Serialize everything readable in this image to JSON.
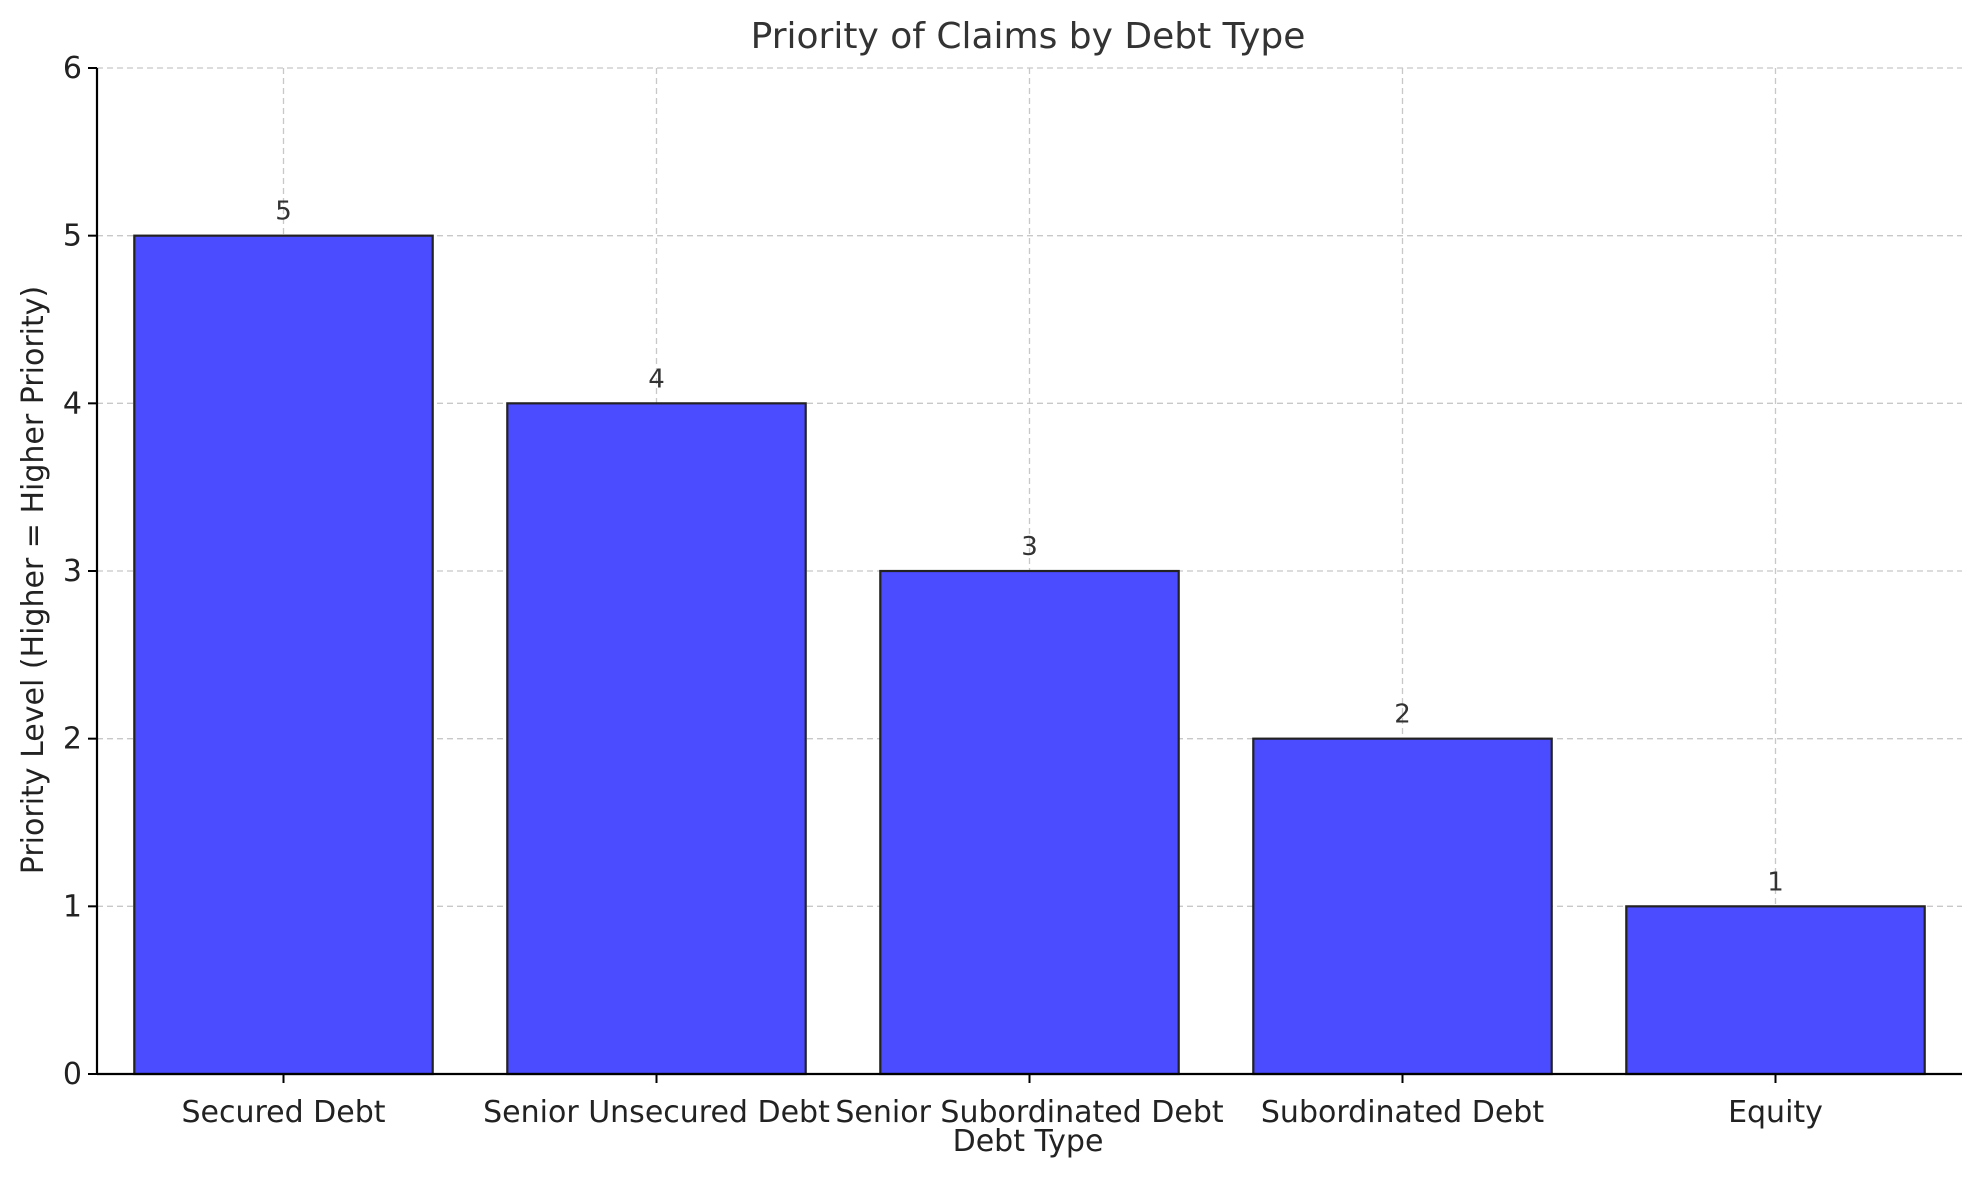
{
  "chart_data": {
    "type": "bar",
    "title": "Priority of Claims by Debt Type",
    "xlabel": "Debt Type",
    "ylabel": "Priority Level (Higher = Higher Priority)",
    "categories": [
      "Secured Debt",
      "Senior Unsecured Debt",
      "Senior Subordinated Debt",
      "Subordinated Debt",
      "Equity"
    ],
    "values": [
      5,
      4,
      3,
      2,
      1
    ],
    "value_labels": [
      "5",
      "4",
      "3",
      "2",
      "1"
    ],
    "ylim": [
      0,
      6
    ],
    "yticks": [
      "0",
      "1",
      "2",
      "3",
      "4",
      "5",
      "6"
    ],
    "grid": true,
    "bar_color": "#4b4bff",
    "bar_edge_color": "#222222"
  }
}
